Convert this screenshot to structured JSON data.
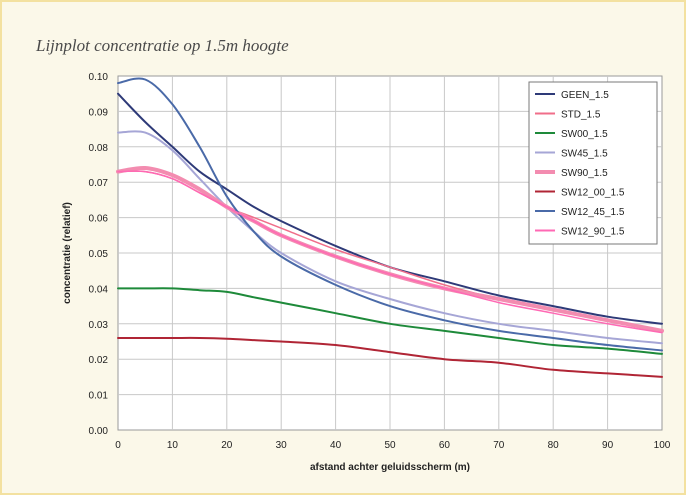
{
  "title": "Lijnplot concentratie op 1.5m hoogte",
  "colors": {
    "background": "#fbf8e9",
    "frame": "#f3e1a0",
    "grid": "#c8c8c8"
  },
  "chart_data": {
    "type": "line",
    "title": "Lijnplot concentratie op 1.5m hoogte",
    "xlabel": "afstand achter geluidsscherm (m)",
    "ylabel": "concentratie (relatief)",
    "xlim": [
      0,
      100
    ],
    "ylim": [
      0,
      0.1
    ],
    "xticks": [
      "0",
      "10",
      "20",
      "30",
      "40",
      "50",
      "60",
      "70",
      "80",
      "90",
      "100"
    ],
    "yticks": [
      "0.00",
      "0.01",
      "0.02",
      "0.03",
      "0.04",
      "0.05",
      "0.06",
      "0.07",
      "0.08",
      "0.09",
      "0.10"
    ],
    "grid": true,
    "legend_position": "top-right",
    "x": [
      0,
      5,
      10,
      15,
      20,
      25,
      30,
      40,
      50,
      60,
      70,
      80,
      90,
      100
    ],
    "series": [
      {
        "name": "GEEN_1.5",
        "color": "#2e3a78",
        "width": 2,
        "values": [
          0.095,
          0.087,
          0.08,
          0.073,
          0.068,
          0.063,
          0.059,
          0.052,
          0.046,
          0.042,
          0.038,
          0.035,
          0.032,
          0.03
        ]
      },
      {
        "name": "STD_1.5",
        "color": "#f06e8a",
        "width": 1.5,
        "values": [
          0.073,
          0.073,
          0.071,
          0.067,
          0.063,
          0.06,
          0.057,
          0.051,
          0.046,
          0.041,
          0.037,
          0.034,
          0.031,
          0.028
        ]
      },
      {
        "name": "SW00_1.5",
        "color": "#1e8a3a",
        "width": 2,
        "values": [
          0.04,
          0.04,
          0.04,
          0.0395,
          0.039,
          0.0375,
          0.036,
          0.033,
          0.03,
          0.028,
          0.026,
          0.024,
          0.023,
          0.0215
        ]
      },
      {
        "name": "SW45_1.5",
        "color": "#a6a6d6",
        "width": 2,
        "values": [
          0.084,
          0.084,
          0.079,
          0.071,
          0.063,
          0.056,
          0.05,
          0.042,
          0.037,
          0.033,
          0.03,
          0.028,
          0.026,
          0.0245
        ]
      },
      {
        "name": "SW90_1.5",
        "color": "#f38cb0",
        "width": 4,
        "values": [
          0.073,
          0.074,
          0.072,
          0.068,
          0.063,
          0.059,
          0.055,
          0.049,
          0.044,
          0.04,
          0.037,
          0.034,
          0.031,
          0.028
        ]
      },
      {
        "name": "SW12_00_1.5",
        "color": "#b02535",
        "width": 2,
        "values": [
          0.026,
          0.026,
          0.026,
          0.026,
          0.0258,
          0.0254,
          0.025,
          0.024,
          0.022,
          0.02,
          0.019,
          0.017,
          0.016,
          0.015
        ]
      },
      {
        "name": "SW12_45_1.5",
        "color": "#4a6aa8",
        "width": 2,
        "values": [
          0.098,
          0.099,
          0.092,
          0.08,
          0.066,
          0.056,
          0.049,
          0.041,
          0.035,
          0.031,
          0.028,
          0.026,
          0.024,
          0.0225
        ]
      },
      {
        "name": "SW12_90_1.5",
        "color": "#ff69b4",
        "width": 1.5,
        "values": [
          0.073,
          0.073,
          0.071,
          0.067,
          0.063,
          0.059,
          0.055,
          0.049,
          0.044,
          0.04,
          0.036,
          0.033,
          0.03,
          0.0275
        ]
      }
    ]
  }
}
